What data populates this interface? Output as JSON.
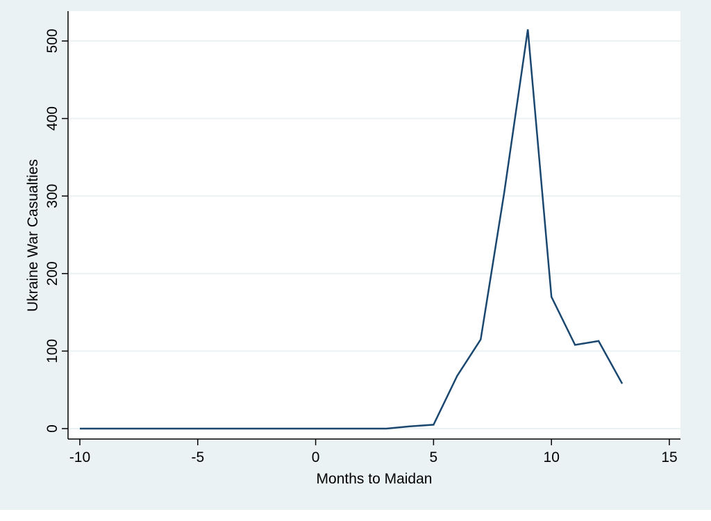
{
  "chart_data": {
    "type": "line",
    "title": "",
    "xlabel": "Months to Maidan",
    "ylabel": "Ukraine War Casualties",
    "xlim": [
      -10,
      15
    ],
    "ylim": [
      0,
      500
    ],
    "xticks": [
      -10,
      -5,
      0,
      5,
      10,
      15
    ],
    "yticks": [
      0,
      100,
      200,
      300,
      400,
      500
    ],
    "xtick_labels": [
      "-10",
      "-5",
      "0",
      "5",
      "10",
      "15"
    ],
    "ytick_labels": [
      "0",
      "100",
      "200",
      "300",
      "400",
      "500"
    ],
    "grid": "horizontal",
    "legend": "none",
    "series": [
      {
        "x": [
          -10,
          -9,
          -8,
          -7,
          -6,
          -5,
          -4,
          -3,
          -2,
          -1,
          0,
          1,
          2,
          3,
          4,
          5,
          6,
          7,
          8,
          9,
          10,
          11,
          12,
          13
        ],
        "y": [
          0,
          0,
          0,
          0,
          0,
          0,
          0,
          0,
          0,
          0,
          0,
          0,
          0,
          0,
          3,
          5,
          68,
          115,
          305,
          515,
          170,
          108,
          113,
          58
        ],
        "color": "#1a476f"
      }
    ]
  },
  "colors": {
    "outer_background": "#eaf2f3",
    "plot_background": "#ffffff",
    "gridline": "#eaf2f3",
    "line": "#1a476f",
    "axis": "#000000"
  }
}
